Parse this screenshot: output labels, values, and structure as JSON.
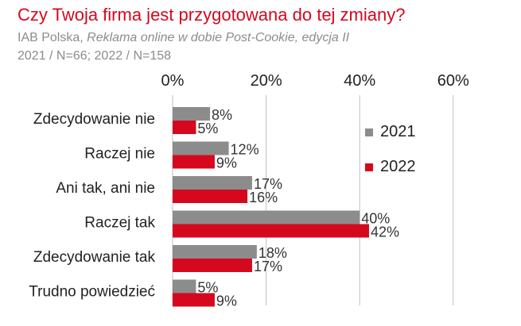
{
  "header": {
    "title": "Czy Twoja firma jest przygotowana do tej zmiany?",
    "source_org": "IAB Polska,",
    "source_work": "Reklama online w dobie Post-Cookie, edycja II",
    "sample": "2021 / N=66; 2022 / N=158"
  },
  "chart_data": {
    "type": "bar",
    "orientation": "horizontal",
    "title": "Czy Twoja firma jest przygotowana do tej zmiany?",
    "categories": [
      "Zdecydowanie nie",
      "Raczej nie",
      "Ani tak, ani nie",
      "Raczej tak",
      "Zdecydowanie tak",
      "Trudno powiedzieć"
    ],
    "series": [
      {
        "name": "2021",
        "color": "#8c8c8c",
        "values": [
          8,
          12,
          17,
          40,
          18,
          5
        ],
        "labels": [
          "8%",
          "12%",
          "17%",
          "40%",
          "18%",
          "5%"
        ]
      },
      {
        "name": "2022",
        "color": "#d5081e",
        "values": [
          5,
          9,
          16,
          42,
          17,
          9
        ],
        "labels": [
          "5%",
          "9%",
          "16%",
          "42%",
          "17%",
          "9%"
        ]
      }
    ],
    "xlim": [
      0,
      60
    ],
    "xticks": [
      0,
      20,
      40,
      60
    ],
    "xtick_labels": [
      "0%",
      "20%",
      "40%",
      "60%"
    ],
    "xaxis_position": "top",
    "grid": true,
    "legend": {
      "position": "right",
      "entries": [
        "2021",
        "2022"
      ]
    }
  }
}
